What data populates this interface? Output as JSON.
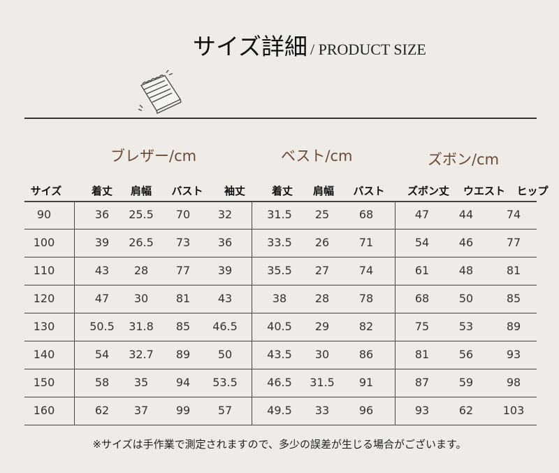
{
  "header": {
    "title": "サイズ詳細",
    "subtitle": "/ PRODUCT SIZE",
    "icon": "notepad-icon"
  },
  "sections": [
    "ブレザー/cm",
    "ベスト/cm",
    "ズボン/cm"
  ],
  "columns": [
    "サイズ",
    "着丈",
    "肩幅",
    "バスト",
    "袖丈",
    "着丈",
    "肩幅",
    "バスト",
    "ズボン丈",
    "ウエスト",
    "ヒップ"
  ],
  "rows": [
    [
      "90",
      "36",
      "25.5",
      "70",
      "32",
      "31.5",
      "25",
      "68",
      "47",
      "44",
      "74"
    ],
    [
      "100",
      "39",
      "26.5",
      "73",
      "36",
      "33.5",
      "26",
      "71",
      "54",
      "46",
      "77"
    ],
    [
      "110",
      "43",
      "28",
      "77",
      "39",
      "35.5",
      "27",
      "74",
      "61",
      "48",
      "81"
    ],
    [
      "120",
      "47",
      "30",
      "81",
      "43",
      "38",
      "28",
      "78",
      "68",
      "50",
      "85"
    ],
    [
      "130",
      "50.5",
      "31.8",
      "85",
      "46.5",
      "40.5",
      "29",
      "82",
      "75",
      "53",
      "89"
    ],
    [
      "140",
      "54",
      "32.7",
      "89",
      "50",
      "43.5",
      "30",
      "86",
      "81",
      "56",
      "93"
    ],
    [
      "150",
      "58",
      "35",
      "94",
      "53.5",
      "46.5",
      "31.5",
      "91",
      "87",
      "59",
      "98"
    ],
    [
      "160",
      "62",
      "37",
      "99",
      "57",
      "49.5",
      "33",
      "96",
      "93",
      "62",
      "103"
    ]
  ],
  "note": "※サイズは手作業で測定されますので、多少の誤差が生じる場合がございます。",
  "colors": {
    "background": "#efebe6",
    "section_label": "#6b4a35"
  }
}
